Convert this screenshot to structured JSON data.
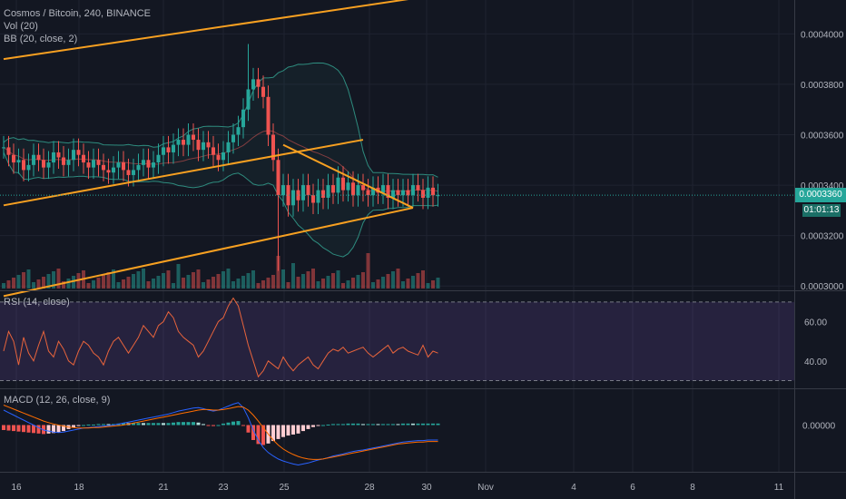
{
  "legend": {
    "main_title": "Cosmos / Bitcoin, 240, BINANCE",
    "volume": "Vol (20)",
    "bb": "BB (20, close, 2)",
    "rsi": "RSI (14, close)",
    "macd": "MACD (12, 26, close, 9)"
  },
  "last_price": "0.0003360",
  "bar_timer": "01:01:13",
  "colors": {
    "background": "#131722",
    "up": "#26a69a",
    "down": "#ef5350",
    "trendline": "#f7a021",
    "bb_line": "#2e8b7e",
    "rsi_line": "#e8643c",
    "rsi_band": "#7e57c2",
    "macd_line": "#2962ff",
    "signal_line": "#ff6d00",
    "price_line": "#26a69a"
  },
  "chart_data": [
    {
      "type": "candlestick",
      "title": "Cosmos / Bitcoin, 240, BINANCE",
      "price_axis_ticks": [
        "0.0004000",
        "0.0003800",
        "0.0003600",
        "0.0003400",
        "0.0003200",
        "0.0003000"
      ],
      "time_axis_ticks": [
        "16",
        "18",
        "21",
        "23",
        "25",
        "28",
        "30",
        "Nov",
        "4",
        "6",
        "8",
        "11"
      ],
      "ylim": [
        0.000299,
        0.000412
      ],
      "last_price": 0.000336,
      "indicators": [
        "Vol (20)",
        "BB (20, close, 2)"
      ],
      "trendlines": [
        {
          "points": [
            [
              0,
              0.00039
            ],
            [
              92,
              0.000417
            ]
          ]
        },
        {
          "points": [
            [
              0,
              0.000332
            ],
            [
              72,
              0.000358
            ]
          ]
        },
        {
          "points": [
            [
              0,
              0.000296
            ],
            [
              82,
              0.000331
            ]
          ]
        },
        {
          "points": [
            [
              56,
              0.000356
            ],
            [
              82,
              0.000331
            ]
          ]
        }
      ]
    },
    {
      "type": "line",
      "title": "RSI (14, close)",
      "y_axis_ticks": [
        "60.00",
        "40.00"
      ],
      "ylim": [
        27,
        75
      ],
      "bands": [
        30,
        70
      ],
      "series": [
        {
          "name": "RSI (14, close)",
          "values": [
            45,
            55,
            50,
            38,
            52,
            44,
            40,
            48,
            55,
            45,
            42,
            50,
            46,
            40,
            38,
            45,
            50,
            48,
            44,
            42,
            38,
            45,
            50,
            52,
            48,
            44,
            48,
            52,
            58,
            55,
            52,
            58,
            60,
            65,
            62,
            55,
            52,
            50,
            48,
            42,
            45,
            50,
            55,
            60,
            62,
            68,
            72,
            68,
            58,
            48,
            40,
            32,
            35,
            40,
            38,
            36,
            42,
            38,
            35,
            38,
            40,
            42,
            38,
            36,
            40,
            44,
            46,
            45,
            47,
            44,
            45,
            46,
            47,
            44,
            42,
            44,
            46,
            48,
            44,
            46,
            47,
            45,
            44,
            43,
            48,
            42,
            45,
            44
          ]
        }
      ]
    },
    {
      "type": "bar",
      "title": "MACD (12, 26, close, 9)",
      "y_axis_ticks": [
        "0.00000"
      ],
      "ylim": [
        -9,
        7
      ],
      "series": [
        {
          "name": "MACD",
          "values": [
            3,
            2.5,
            2,
            1.5,
            1,
            0.5,
            0,
            -0.5,
            -1,
            -1.2,
            -1.4,
            -1.5,
            -1.4,
            -1.2,
            -1,
            -0.8,
            -0.6,
            -0.5,
            -0.4,
            -0.3,
            -0.2,
            -0.1,
            0,
            0.2,
            0.4,
            0.6,
            0.8,
            1,
            1.2,
            1.4,
            1.6,
            1.8,
            2,
            2.2,
            2.5,
            2.8,
            3,
            3.2,
            3.4,
            3.5,
            3.3,
            3,
            2.8,
            3,
            3.4,
            3.8,
            4.2,
            4.5,
            3.5,
            1.5,
            -1,
            -3,
            -4.5,
            -5.5,
            -6.2,
            -6.8,
            -7.2,
            -7.5,
            -7.8,
            -8,
            -7.8,
            -7.6,
            -7.3,
            -7,
            -6.8,
            -6.5,
            -6.2,
            -6,
            -5.8,
            -5.5,
            -5.3,
            -5.1,
            -5,
            -4.8,
            -4.6,
            -4.4,
            -4.2,
            -4,
            -3.8,
            -3.6,
            -3.4,
            -3.3,
            -3.2,
            -3.1,
            -3.1,
            -3,
            -3,
            -3
          ]
        },
        {
          "name": "Signal",
          "values": [
            4,
            3.6,
            3.2,
            2.8,
            2.4,
            2,
            1.6,
            1.2,
            0.8,
            0.5,
            0.2,
            0,
            -0.2,
            -0.4,
            -0.5,
            -0.6,
            -0.6,
            -0.6,
            -0.5,
            -0.5,
            -0.4,
            -0.3,
            -0.2,
            -0.1,
            0,
            0.2,
            0.4,
            0.6,
            0.8,
            1,
            1.2,
            1.4,
            1.6,
            1.8,
            2,
            2.2,
            2.4,
            2.6,
            2.8,
            3,
            3.1,
            3.1,
            3,
            3,
            3.1,
            3.3,
            3.5,
            3.7,
            3.6,
            3,
            2,
            0.8,
            -0.5,
            -1.8,
            -3,
            -4,
            -4.8,
            -5.4,
            -5.9,
            -6.3,
            -6.6,
            -6.8,
            -6.9,
            -6.9,
            -6.8,
            -6.6,
            -6.4,
            -6.2,
            -6,
            -5.8,
            -5.6,
            -5.4,
            -5.2,
            -5,
            -4.8,
            -4.6,
            -4.4,
            -4.2,
            -4,
            -3.8,
            -3.7,
            -3.6,
            -3.5,
            -3.4,
            -3.4,
            -3.3,
            -3.3,
            -3.3
          ]
        }
      ]
    }
  ]
}
